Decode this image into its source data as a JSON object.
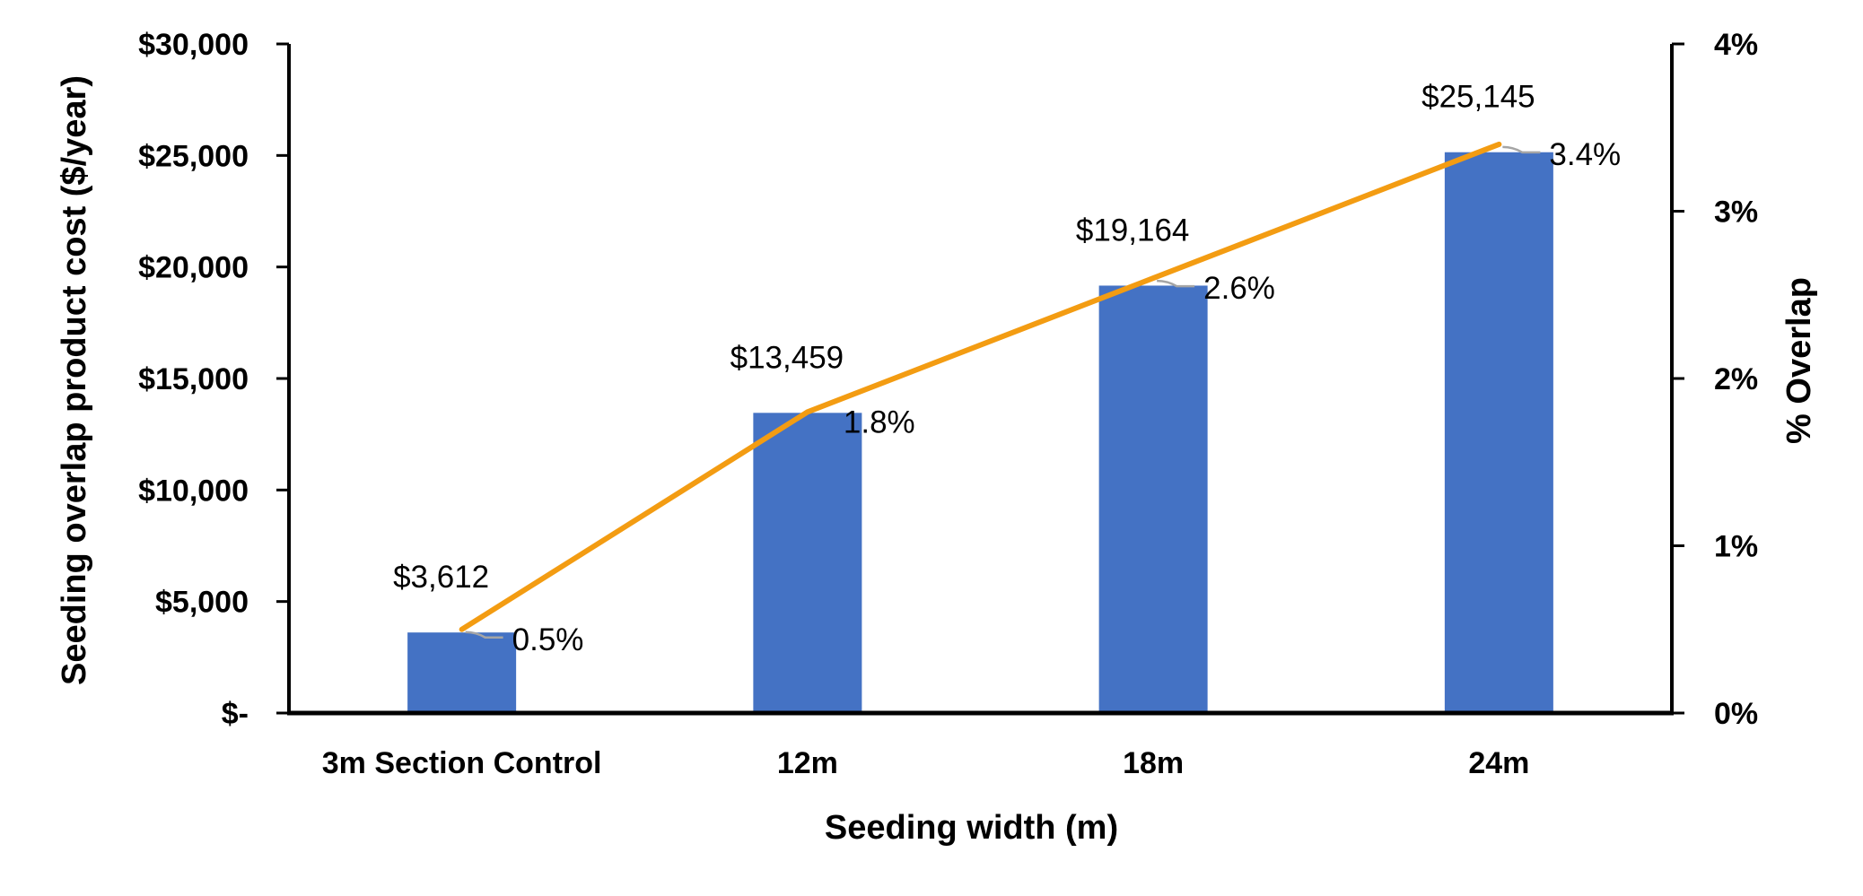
{
  "chart_data": {
    "type": "bar+line",
    "categories": [
      "3m Section Control",
      "12m",
      "18m",
      "24m"
    ],
    "series": [
      {
        "type": "bar",
        "axis": "left",
        "values": [
          3612,
          13459,
          19164,
          25145
        ],
        "labels": [
          "$3,612",
          "$13,459",
          "$19,164",
          "$25,145"
        ],
        "color": "#4472C4"
      },
      {
        "type": "line",
        "axis": "right",
        "values": [
          0.005,
          0.018,
          0.026,
          0.034
        ],
        "labels": [
          "0.5%",
          "1.8%",
          "2.6%",
          "3.4%"
        ],
        "color": "#F39C12"
      }
    ],
    "xlabel": "Seeding width (m)",
    "ylabel": "Seeding overlap product cost ($/year)",
    "y2label": "% Overlap",
    "ylim": [
      0,
      30000
    ],
    "y2lim": [
      0,
      0.04
    ],
    "yticks": [
      "$-",
      "$5,000",
      "$10,000",
      "$15,000",
      "$20,000",
      "$25,000",
      "$30,000"
    ],
    "y2ticks": [
      "0%",
      "1%",
      "2%",
      "3%",
      "4%"
    ],
    "grid": false,
    "legend": "none",
    "leader_line_color": "#A5A5A5"
  }
}
